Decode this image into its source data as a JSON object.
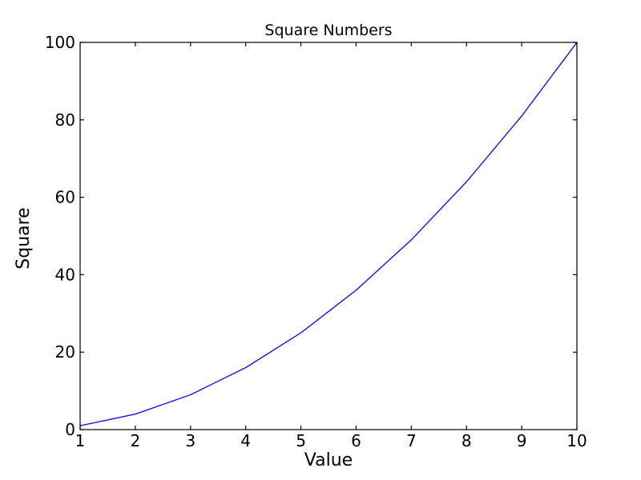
{
  "figure": {
    "background": "#ffffff"
  },
  "chart_data": {
    "type": "line",
    "title": "Square Numbers",
    "xlabel": "Value",
    "ylabel": "Square",
    "x": [
      1,
      2,
      3,
      4,
      5,
      6,
      7,
      8,
      9,
      10
    ],
    "y": [
      1,
      4,
      9,
      16,
      25,
      36,
      49,
      64,
      81,
      100
    ],
    "xlim": [
      1,
      10
    ],
    "ylim": [
      0,
      100
    ],
    "xticks": [
      1,
      2,
      3,
      4,
      5,
      6,
      7,
      8,
      9,
      10
    ],
    "yticks": [
      0,
      20,
      40,
      60,
      80,
      100
    ],
    "grid": false,
    "legend": false,
    "tick_direction": "in",
    "line_color": "#0000ff",
    "axis_color": "#000000"
  }
}
